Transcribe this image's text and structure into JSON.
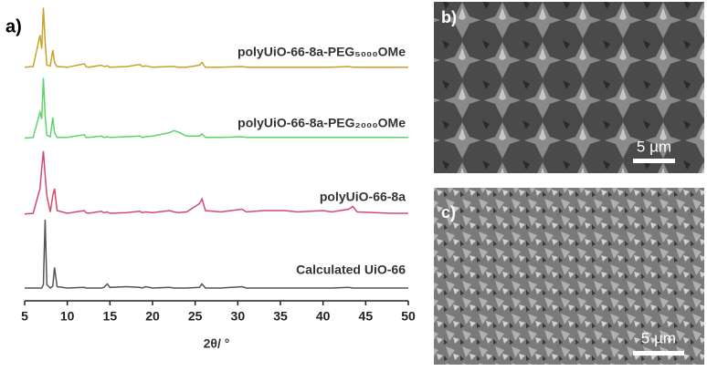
{
  "chart_data": {
    "type": "line",
    "panel_label": "a)",
    "xlabel": "2θ/ °",
    "xlim": [
      5,
      50
    ],
    "xticks": [
      5,
      10,
      15,
      20,
      25,
      30,
      35,
      40,
      45,
      50
    ],
    "x": [
      5,
      6,
      6.8,
      7.0,
      7.2,
      7.4,
      7.6,
      8.0,
      8.3,
      8.5,
      8.8,
      10,
      12,
      12.2,
      12.5,
      14,
      14.3,
      14.7,
      15,
      17,
      18.5,
      18.8,
      19.2,
      20,
      22,
      22.5,
      23,
      24,
      25.5,
      25.8,
      26.2,
      28,
      30.5,
      31,
      33,
      35.5,
      37,
      40,
      41,
      43,
      43.5,
      44,
      46,
      48,
      50
    ],
    "series": [
      {
        "name": "polyUiO-66-8a-PEG₅₀₀₀OMe",
        "color": "#c9a227",
        "values": [
          3,
          4,
          50,
          30,
          90,
          40,
          6,
          5,
          28,
          10,
          4,
          3,
          8,
          4,
          3,
          6,
          4,
          5,
          3,
          4,
          7,
          4,
          5,
          3,
          4,
          4,
          3,
          3,
          6,
          10,
          3,
          3,
          4,
          3,
          3,
          3,
          3,
          3,
          3,
          4,
          3,
          3,
          3,
          3,
          3
        ]
      },
      {
        "name": "polyUiO-66-8a-PEG₂₀₀₀OMe",
        "color": "#5dd36a",
        "values": [
          2,
          3,
          40,
          30,
          90,
          35,
          6,
          4,
          32,
          10,
          3,
          3,
          7,
          3,
          3,
          5,
          3,
          4,
          3,
          4,
          5,
          3,
          4,
          5,
          10,
          13,
          11,
          5,
          5,
          8,
          3,
          3,
          4,
          3,
          3,
          3,
          3,
          3,
          3,
          3,
          3,
          3,
          3,
          3,
          3
        ]
      },
      {
        "name": "polyUiO-66-8a",
        "color": "#d44a6a",
        "values": [
          3,
          4,
          40,
          70,
          95,
          60,
          30,
          6,
          30,
          40,
          8,
          4,
          8,
          5,
          4,
          7,
          5,
          6,
          4,
          5,
          7,
          5,
          6,
          5,
          8,
          6,
          5,
          6,
          18,
          25,
          8,
          6,
          10,
          6,
          8,
          8,
          6,
          8,
          6,
          10,
          14,
          6,
          5,
          4,
          4
        ]
      },
      {
        "name": "Calculated UiO-66",
        "color": "#555555",
        "values": [
          0,
          0,
          0,
          0,
          5,
          100,
          5,
          0,
          3,
          30,
          2,
          0,
          1,
          0,
          0,
          0,
          1,
          6,
          1,
          2,
          1,
          0,
          2,
          0,
          1,
          0,
          0,
          0,
          1,
          6,
          0,
          0,
          2,
          0,
          0,
          0,
          0,
          0,
          0,
          1,
          0,
          0,
          0,
          0,
          0
        ]
      }
    ]
  },
  "images": [
    {
      "label": "b)",
      "scale_bar": "5 µm"
    },
    {
      "label": "c)",
      "scale_bar": "5 µm"
    }
  ]
}
